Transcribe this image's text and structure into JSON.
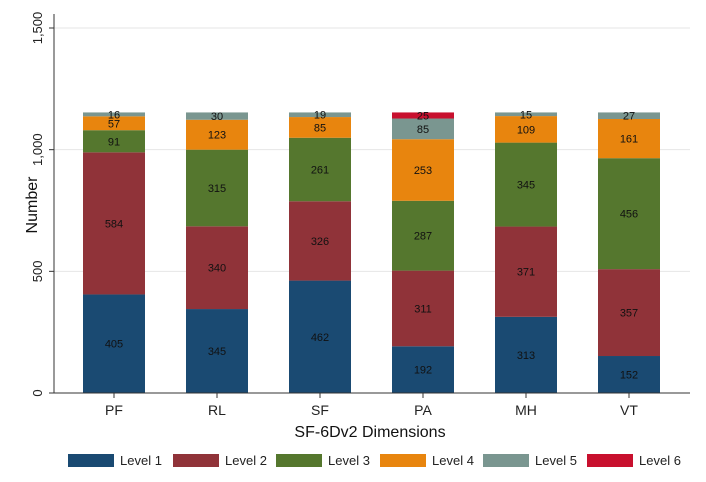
{
  "chart_data": {
    "type": "bar",
    "stacked": true,
    "title": "",
    "xlabel": "SF-6Dv2 Dimensions",
    "ylabel": "Number",
    "ylim": [
      0,
      1500
    ],
    "yticks": [
      0,
      500,
      1000,
      1500
    ],
    "ytick_labels": [
      "0",
      "500",
      "1,000",
      "1,500"
    ],
    "categories": [
      "PF",
      "RL",
      "SF",
      "PA",
      "MH",
      "VT"
    ],
    "series": [
      {
        "name": "Level 1",
        "color": "#1a4a72",
        "values": [
          405,
          345,
          462,
          192,
          313,
          152
        ]
      },
      {
        "name": "Level 2",
        "color": "#903339",
        "values": [
          584,
          340,
          326,
          311,
          371,
          357
        ]
      },
      {
        "name": "Level 3",
        "color": "#55772e",
        "values": [
          91,
          315,
          261,
          287,
          345,
          456
        ]
      },
      {
        "name": "Level 4",
        "color": "#e8850e",
        "values": [
          57,
          123,
          85,
          253,
          109,
          161
        ]
      },
      {
        "name": "Level 5",
        "color": "#7a9690",
        "values": [
          16,
          30,
          19,
          85,
          15,
          27
        ]
      },
      {
        "name": "Level 6",
        "color": "#c8102e",
        "values": [
          0,
          0,
          0,
          25,
          0,
          0
        ]
      }
    ],
    "legend": "bottom",
    "grid": true
  }
}
